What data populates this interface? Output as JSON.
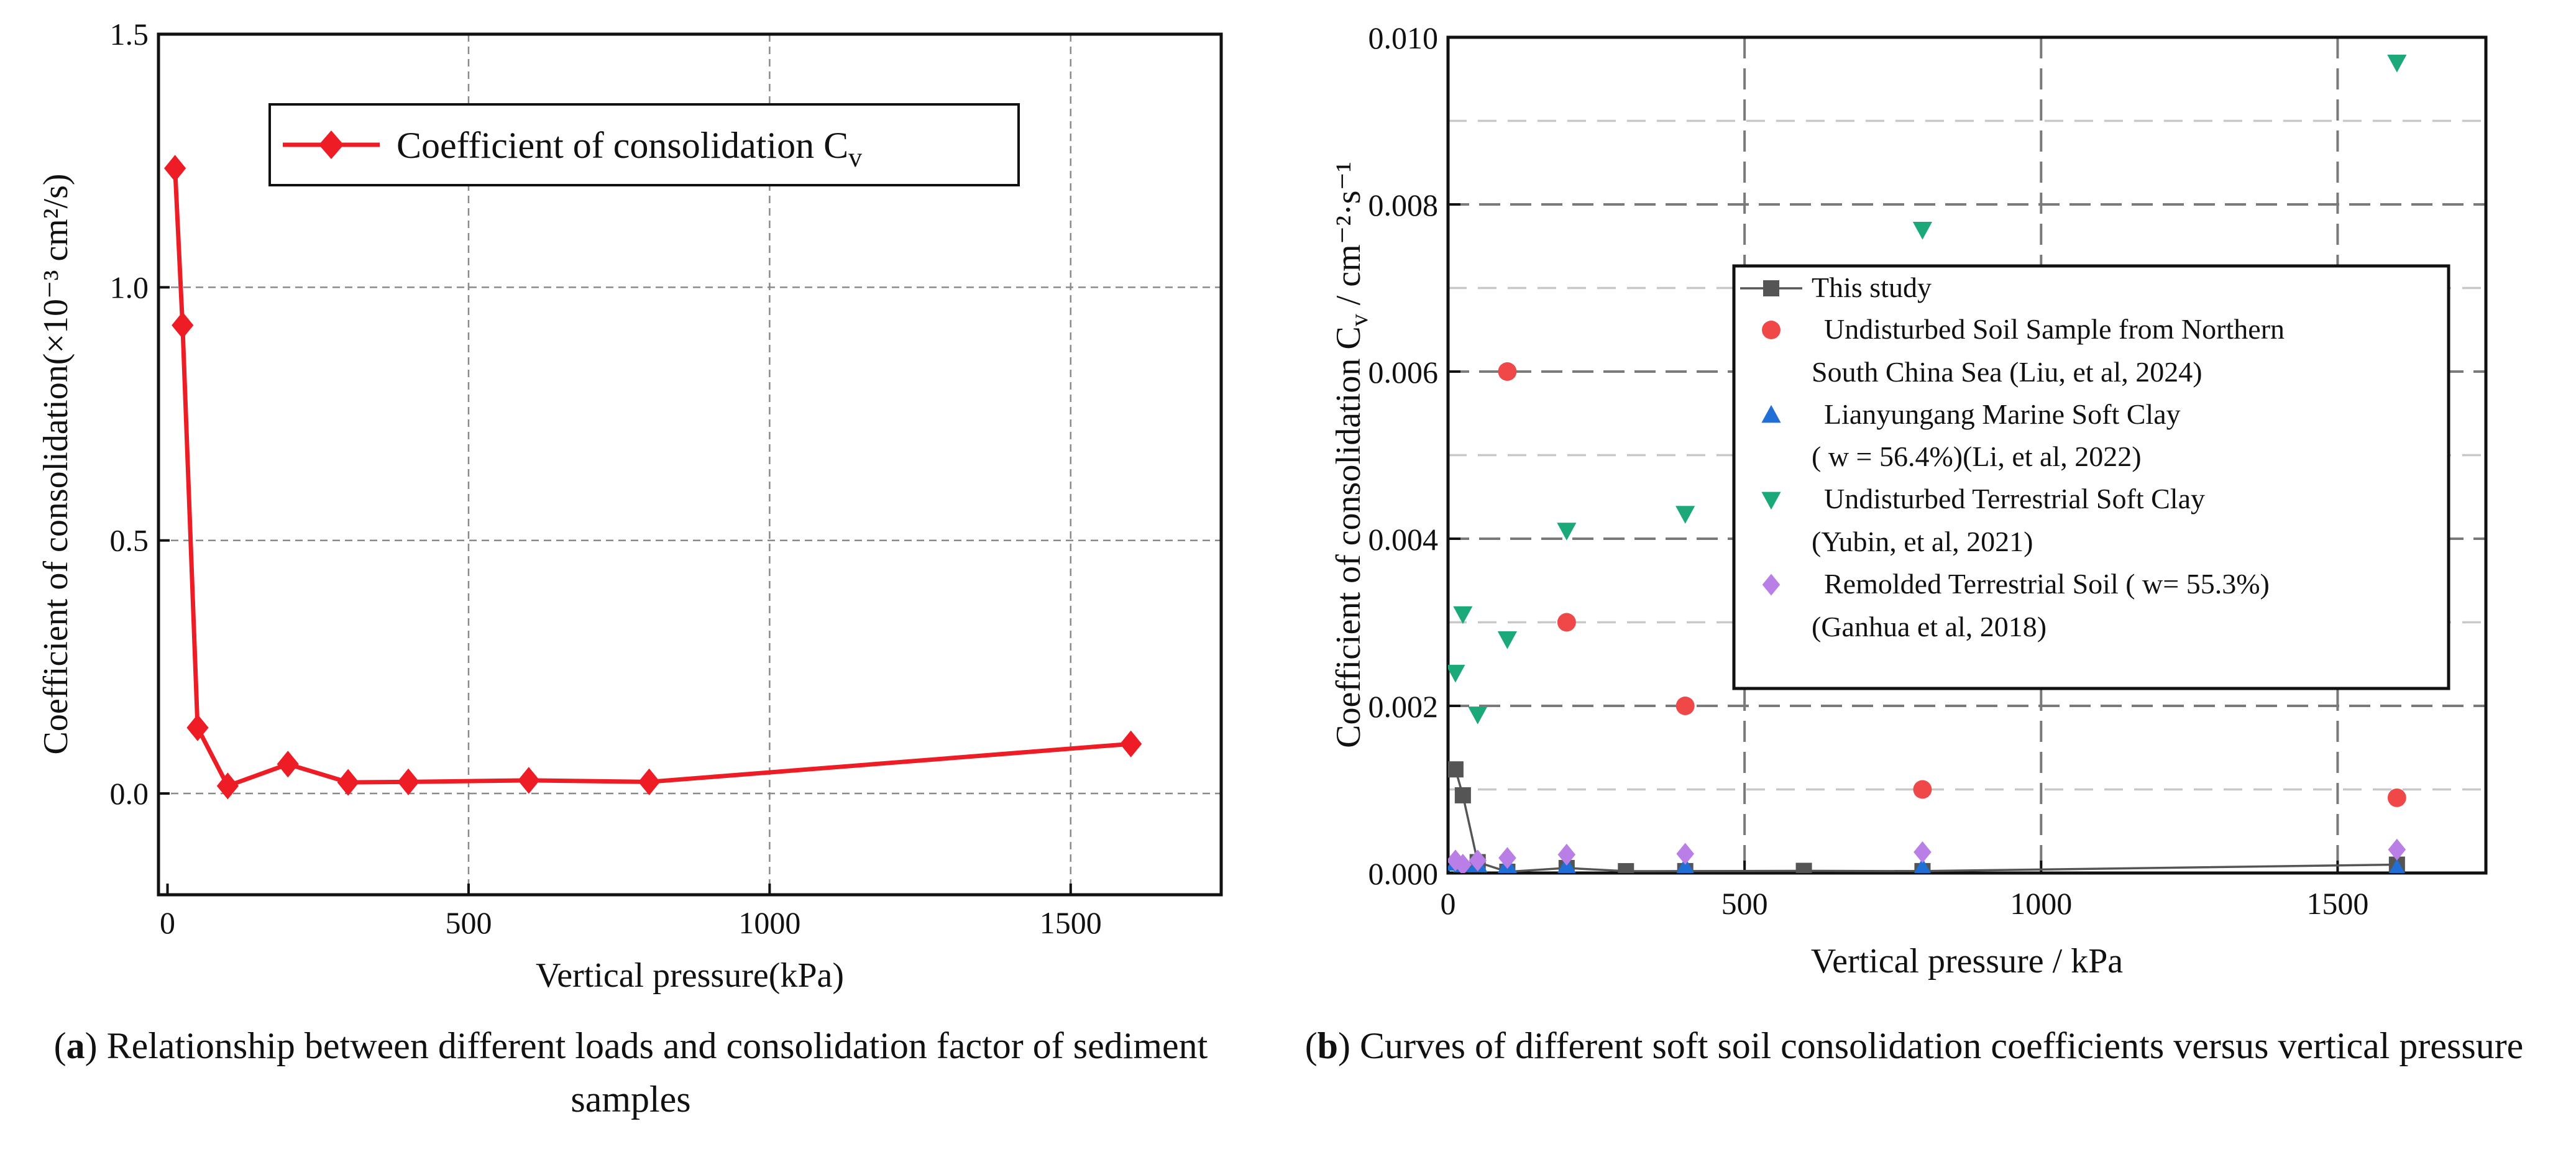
{
  "chart_data": [
    {
      "id": "a",
      "type": "line",
      "xlabel": "Vertical pressure(kPa)",
      "ylabel": "Coefficient of consolidation(×10⁻³ cm²/s)",
      "xlim": [
        -15,
        1750
      ],
      "ylim": [
        -0.2,
        1.5
      ],
      "xticks": [
        0,
        500,
        1000,
        1500
      ],
      "yticks": [
        0.0,
        0.5,
        1.0,
        1.5
      ],
      "ytick_labels": [
        "0.0",
        "0.5",
        "1.0",
        "1.5"
      ],
      "grid": true,
      "legend": "top-center",
      "color": "#ee1c25",
      "series": [
        {
          "name": "Coefficient of consolidation C",
          "name_sub": "v",
          "x": [
            12.5,
            25,
            50,
            100,
            200,
            300,
            400,
            600,
            800,
            1600
          ],
          "y": [
            1.235,
            0.925,
            0.13,
            0.015,
            0.058,
            0.022,
            0.023,
            0.026,
            0.023,
            0.098
          ]
        }
      ],
      "caption": {
        "letter": "a",
        "text": "Relationship between different loads and consolidation factor of sediment samples"
      }
    },
    {
      "id": "b",
      "type": "scatter",
      "xlabel": "Vertical pressure / kPa",
      "ylabel": "Coefficient of consolidation C",
      "ylabel_sub": "v",
      "ylabel_unit": " / cm⁻²·s⁻¹",
      "xlim": [
        0,
        1750
      ],
      "ylim": [
        0,
        0.01
      ],
      "xticks": [
        0,
        500,
        1000,
        1500
      ],
      "yticks": [
        0.0,
        0.002,
        0.004,
        0.006,
        0.008,
        0.01
      ],
      "ytick_labels": [
        "0.000",
        "0.002",
        "0.004",
        "0.006",
        "0.008",
        "0.010"
      ],
      "grid": true,
      "legend": "center-right",
      "series": [
        {
          "name": "This study",
          "name2": "",
          "marker": "square",
          "color": "#555555",
          "line": true,
          "x": [
            12.5,
            25,
            50,
            100,
            200,
            300,
            400,
            600,
            800,
            1600
          ],
          "y": [
            0.00124,
            0.00093,
            0.00013,
            1.5e-05,
            6e-05,
            2.2e-05,
            2.3e-05,
            2.6e-05,
            2.3e-05,
            0.0001
          ]
        },
        {
          "name": "Undisturbed Soil Sample from Northern",
          "name2": "South China Sea (Liu, et al, 2024)",
          "marker": "circle",
          "color": "#f04848",
          "line": false,
          "x": [
            100,
            200,
            400,
            800,
            1600
          ],
          "y": [
            0.006,
            0.003,
            0.002,
            0.001,
            0.0009
          ]
        },
        {
          "name": "Lianyungang Marine Soft Clay",
          "name2": "( w = 56.4%)(Li, et al, 2022)",
          "marker": "triangle-up",
          "color": "#1f6fd6",
          "line": false,
          "x": [
            12.5,
            25,
            50,
            100,
            200,
            400,
            800,
            1600
          ],
          "y": [
            0.00012,
            0.0001,
            0.0001,
            9e-05,
            8e-05,
            7e-05,
            6e-05,
            5e-05
          ]
        },
        {
          "name": "Undisturbed Terrestrial Soft Clay",
          "name2": "(Yubin, et al, 2021)",
          "marker": "triangle-down",
          "color": "#1ba97a",
          "line": false,
          "x": [
            12.5,
            25,
            50,
            100,
            200,
            400,
            800,
            1600
          ],
          "y": [
            0.0024,
            0.0031,
            0.0019,
            0.0028,
            0.0041,
            0.0043,
            0.0077,
            0.0097
          ]
        },
        {
          "name": "Remolded Terrestrial Soil ( w= 55.3%)",
          "name2": "(Ganhua et al, 2018)",
          "marker": "diamond",
          "color": "#b97fe6",
          "line": false,
          "x": [
            12.5,
            25,
            50,
            100,
            200,
            400,
            800,
            1600
          ],
          "y": [
            0.00015,
            0.0001,
            0.00015,
            0.00018,
            0.00022,
            0.00023,
            0.00025,
            0.00028
          ]
        }
      ],
      "caption": {
        "letter": "b",
        "text": "Curves of different soft soil consolidation coefficients versus vertical pressure"
      }
    }
  ]
}
